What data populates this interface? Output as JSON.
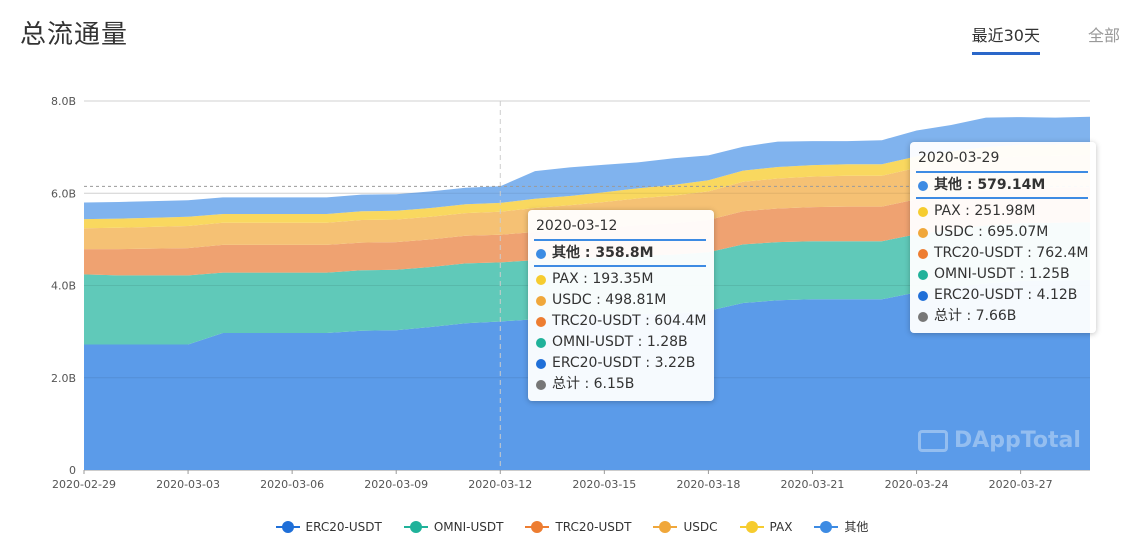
{
  "header": {
    "title": "总流通量",
    "tabs": [
      {
        "label": "最近30天",
        "active": true
      },
      {
        "label": "全部",
        "active": false
      }
    ]
  },
  "watermark": "DAppTotal",
  "chart_data": {
    "type": "area",
    "stacked": true,
    "grid": true,
    "y_ticks": [
      "0",
      "2.0B",
      "4.0B",
      "6.0B",
      "8.0B"
    ],
    "ylim": [
      0,
      8.0
    ],
    "y_unit": "B",
    "x": [
      "2020-02-29",
      "2020-03-01",
      "2020-03-02",
      "2020-03-03",
      "2020-03-04",
      "2020-03-05",
      "2020-03-06",
      "2020-03-07",
      "2020-03-08",
      "2020-03-09",
      "2020-03-10",
      "2020-03-11",
      "2020-03-12",
      "2020-03-13",
      "2020-03-14",
      "2020-03-15",
      "2020-03-16",
      "2020-03-17",
      "2020-03-18",
      "2020-03-19",
      "2020-03-20",
      "2020-03-21",
      "2020-03-22",
      "2020-03-23",
      "2020-03-24",
      "2020-03-25",
      "2020-03-26",
      "2020-03-27",
      "2020-03-28",
      "2020-03-29"
    ],
    "x_tick_labels": [
      "2020-02-29",
      "2020-03-03",
      "2020-03-06",
      "2020-03-09",
      "2020-03-12",
      "2020-03-15",
      "2020-03-18",
      "2020-03-21",
      "2020-03-24",
      "2020-03-27"
    ],
    "series": [
      {
        "name": "ERC20-USDT",
        "color": "#5b9be9",
        "legend_color": "#1f6fd8",
        "values": [
          2.72,
          2.72,
          2.72,
          2.72,
          2.97,
          2.97,
          2.97,
          2.97,
          3.02,
          3.03,
          3.1,
          3.18,
          3.22,
          3.27,
          3.3,
          3.33,
          3.38,
          3.4,
          3.45,
          3.62,
          3.68,
          3.7,
          3.7,
          3.7,
          3.85,
          3.95,
          4.05,
          4.1,
          4.11,
          4.12
        ]
      },
      {
        "name": "OMNI-USDT",
        "color": "#60c9b9",
        "legend_color": "#20b29a",
        "values": [
          1.52,
          1.5,
          1.5,
          1.5,
          1.31,
          1.31,
          1.31,
          1.31,
          1.31,
          1.31,
          1.3,
          1.3,
          1.28,
          1.28,
          1.28,
          1.28,
          1.27,
          1.27,
          1.27,
          1.27,
          1.26,
          1.26,
          1.26,
          1.26,
          1.26,
          1.26,
          1.25,
          1.25,
          1.25,
          1.25
        ]
      },
      {
        "name": "TRC20-USDT",
        "color": "#efa271",
        "legend_color": "#ed7d31",
        "values": [
          0.55,
          0.57,
          0.58,
          0.59,
          0.6,
          0.6,
          0.6,
          0.6,
          0.6,
          0.6,
          0.6,
          0.6,
          0.6,
          0.61,
          0.62,
          0.64,
          0.66,
          0.68,
          0.7,
          0.72,
          0.73,
          0.74,
          0.75,
          0.75,
          0.76,
          0.76,
          0.76,
          0.76,
          0.76,
          0.76
        ]
      },
      {
        "name": "USDC",
        "color": "#f5c174",
        "legend_color": "#f0a73a",
        "values": [
          0.45,
          0.46,
          0.47,
          0.48,
          0.48,
          0.48,
          0.48,
          0.48,
          0.49,
          0.49,
          0.49,
          0.49,
          0.5,
          0.52,
          0.54,
          0.56,
          0.58,
          0.6,
          0.62,
          0.64,
          0.65,
          0.66,
          0.67,
          0.67,
          0.68,
          0.69,
          0.69,
          0.69,
          0.69,
          0.7
        ]
      },
      {
        "name": "PAX",
        "color": "#f9d85f",
        "legend_color": "#f6cc2f",
        "values": [
          0.2,
          0.2,
          0.2,
          0.2,
          0.19,
          0.19,
          0.19,
          0.19,
          0.19,
          0.19,
          0.19,
          0.19,
          0.19,
          0.2,
          0.2,
          0.21,
          0.22,
          0.23,
          0.24,
          0.24,
          0.25,
          0.25,
          0.25,
          0.25,
          0.25,
          0.25,
          0.25,
          0.25,
          0.25,
          0.25
        ]
      },
      {
        "name": "其他",
        "color": "#80b3ee",
        "legend_color": "#3d8be3",
        "values": [
          0.36,
          0.36,
          0.36,
          0.36,
          0.36,
          0.36,
          0.36,
          0.36,
          0.36,
          0.36,
          0.36,
          0.36,
          0.36,
          0.6,
          0.62,
          0.6,
          0.56,
          0.58,
          0.54,
          0.52,
          0.55,
          0.52,
          0.5,
          0.52,
          0.56,
          0.57,
          0.64,
          0.6,
          0.58,
          0.58
        ]
      }
    ],
    "tooltips": [
      {
        "date": "2020-03-12",
        "rows": [
          {
            "label": "其他 : 358.8M",
            "color": "#3d8be3",
            "bold": true
          },
          {
            "label": "PAX : 193.35M",
            "color": "#f6cc2f"
          },
          {
            "label": "USDC : 498.81M",
            "color": "#f0a73a"
          },
          {
            "label": "TRC20-USDT : 604.4M",
            "color": "#ed7d31"
          },
          {
            "label": "OMNI-USDT : 1.28B",
            "color": "#20b29a"
          },
          {
            "label": "ERC20-USDT : 3.22B",
            "color": "#1f6fd8"
          },
          {
            "label": "总计 : 6.15B",
            "color": "#777777"
          }
        ]
      },
      {
        "date": "2020-03-29",
        "rows": [
          {
            "label": "其他 : 579.14M",
            "color": "#3d8be3",
            "bold": true
          },
          {
            "label": "PAX : 251.98M",
            "color": "#f6cc2f"
          },
          {
            "label": "USDC : 695.07M",
            "color": "#f0a73a"
          },
          {
            "label": "TRC20-USDT : 762.4M",
            "color": "#ed7d31"
          },
          {
            "label": "OMNI-USDT : 1.25B",
            "color": "#20b29a"
          },
          {
            "label": "ERC20-USDT : 4.12B",
            "color": "#1f6fd8"
          },
          {
            "label": "总计 : 7.66B",
            "color": "#777777"
          }
        ]
      }
    ],
    "crosshair_date": "2020-03-12",
    "crosshair_total": 6.15
  }
}
